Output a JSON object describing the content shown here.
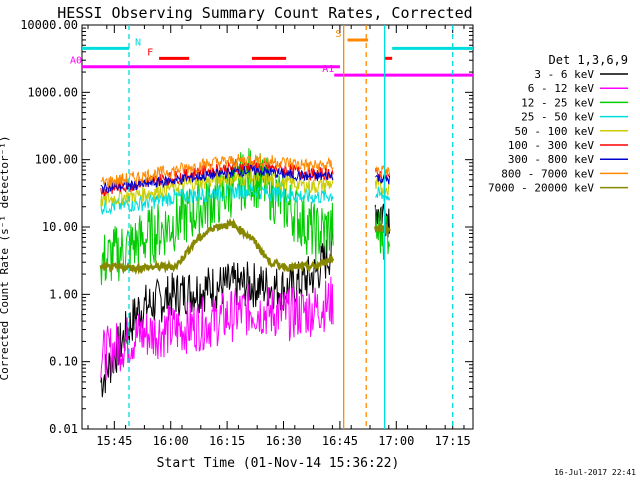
{
  "chart_data": {
    "type": "line",
    "title": "HESSI Observing Summary Count Rates, Corrected",
    "xlabel": "Start Time (01-Nov-14 15:36:22)",
    "ylabel": "Corrected Count Rate (s⁻¹ detector⁻¹)",
    "y_scale": "log",
    "ylim": [
      0.01,
      10000
    ],
    "y_ticks": [
      "0.01",
      "0.10",
      "1.00",
      "10.00",
      "100.00",
      "1000.00",
      "10000.00"
    ],
    "x_range_min": [
      0,
      104
    ],
    "x_ticks": [
      {
        "label": "15:45",
        "min": 8.6
      },
      {
        "label": "16:00",
        "min": 23.6
      },
      {
        "label": "16:15",
        "min": 38.6
      },
      {
        "label": "16:30",
        "min": 53.6
      },
      {
        "label": "16:45",
        "min": 68.6
      },
      {
        "label": "17:00",
        "min": 83.6
      },
      {
        "label": "17:15",
        "min": 98.6
      }
    ],
    "legend_title": "Det 1,3,6,9",
    "legend_position": "right",
    "stamp": "16-Jul-2017 22:41",
    "series": [
      {
        "name": "3 - 6 keV",
        "color": "#000000",
        "x": [
          5,
          15,
          25,
          35,
          45,
          55,
          62,
          67,
          75,
          78,
          82
        ],
        "y": [
          0.05,
          0.6,
          1.0,
          1.3,
          1.4,
          1.2,
          2.0,
          5.0,
          null,
          20,
          15
        ]
      },
      {
        "name": "6 - 12 keV",
        "color": "#ff00ff",
        "x": [
          5,
          15,
          25,
          35,
          45,
          55,
          62,
          67
        ],
        "y": [
          0.12,
          0.25,
          0.3,
          0.4,
          0.6,
          0.5,
          0.6,
          0.8
        ]
      },
      {
        "name": "12 - 25 keV",
        "color": "#00cc00",
        "x": [
          5,
          15,
          25,
          35,
          45,
          55,
          62,
          67,
          75,
          78,
          82
        ],
        "y": [
          3,
          6,
          12,
          25,
          60,
          20,
          8,
          10,
          null,
          8,
          10
        ]
      },
      {
        "name": "25 - 50 keV",
        "color": "#00dddd",
        "x": [
          5,
          15,
          25,
          35,
          45,
          55,
          62,
          67,
          75,
          78,
          82
        ],
        "y": [
          20,
          22,
          28,
          32,
          35,
          30,
          28,
          30,
          null,
          30,
          28
        ]
      },
      {
        "name": "50 - 100 keV",
        "color": "#cccc00",
        "x": [
          5,
          15,
          25,
          35,
          45,
          55,
          62,
          67,
          75,
          78,
          82
        ],
        "y": [
          25,
          30,
          40,
          50,
          55,
          45,
          40,
          45,
          null,
          40,
          38
        ]
      },
      {
        "name": "100 - 300 keV",
        "color": "#ff0000",
        "x": [
          5,
          15,
          25,
          35,
          45,
          55,
          62,
          67,
          75,
          78,
          82
        ],
        "y": [
          35,
          45,
          55,
          70,
          80,
          70,
          60,
          65,
          null,
          60,
          55
        ]
      },
      {
        "name": "300 - 800 keV",
        "color": "#0000cc",
        "x": [
          5,
          15,
          25,
          35,
          45,
          55,
          62,
          67,
          75,
          78,
          82
        ],
        "y": [
          38,
          42,
          50,
          60,
          70,
          60,
          55,
          60,
          null,
          55,
          50
        ]
      },
      {
        "name": "800 - 7000 keV",
        "color": "#ff8800",
        "x": [
          5,
          15,
          25,
          35,
          45,
          55,
          62,
          67,
          75,
          78,
          82
        ],
        "y": [
          45,
          55,
          70,
          90,
          100,
          90,
          80,
          85,
          null,
          70,
          65
        ]
      },
      {
        "name": "7000 - 20000 keV",
        "color": "#888800",
        "x": [
          5,
          15,
          25,
          30,
          35,
          40,
          45,
          50,
          55,
          62,
          67,
          75,
          78,
          82
        ],
        "y": [
          2.5,
          2.5,
          2.6,
          6,
          10,
          11,
          7,
          3,
          2.5,
          2.6,
          3.5,
          null,
          10,
          9
        ]
      }
    ],
    "annotations": {
      "bar_labels": [
        "N",
        "F",
        "S",
        "A0",
        "A1"
      ],
      "bars": [
        {
          "label": "N",
          "color": "#00dddd",
          "level": 4500,
          "x": [
            0,
            12.5
          ]
        },
        {
          "label": "N",
          "color": "#00dddd",
          "level": 4500,
          "x": [
            82.5,
            104
          ]
        },
        {
          "label": "F",
          "color": "#ff0000",
          "level": 3200,
          "x": [
            20.5,
            28.5
          ]
        },
        {
          "label": "F",
          "color": "#ff0000",
          "level": 3200,
          "x": [
            45.2,
            54.3
          ]
        },
        {
          "label": "F",
          "color": "#ff0000",
          "level": 3200,
          "x": [
            80.5,
            82.5
          ]
        },
        {
          "label": "S",
          "color": "#ff8800",
          "level": 6000,
          "x": [
            70.6,
            76.1
          ]
        },
        {
          "label": "A0",
          "color": "#ff00ff",
          "level": 2400,
          "x": [
            0,
            68.6
          ]
        },
        {
          "label": "A1",
          "color": "#ff00ff",
          "level": 1800,
          "x": [
            67.1,
            104
          ]
        }
      ],
      "vlines": [
        {
          "x": 12.5,
          "color": "#00dddd",
          "dashed": true
        },
        {
          "x": 69.6,
          "color": "#ff8800",
          "dashed": false
        },
        {
          "x": 75.6,
          "color": "#ff8800",
          "dashed": true
        },
        {
          "x": 80.5,
          "color": "#00dddd",
          "dashed": false
        },
        {
          "x": 98.6,
          "color": "#00dddd",
          "dashed": true
        }
      ]
    }
  }
}
